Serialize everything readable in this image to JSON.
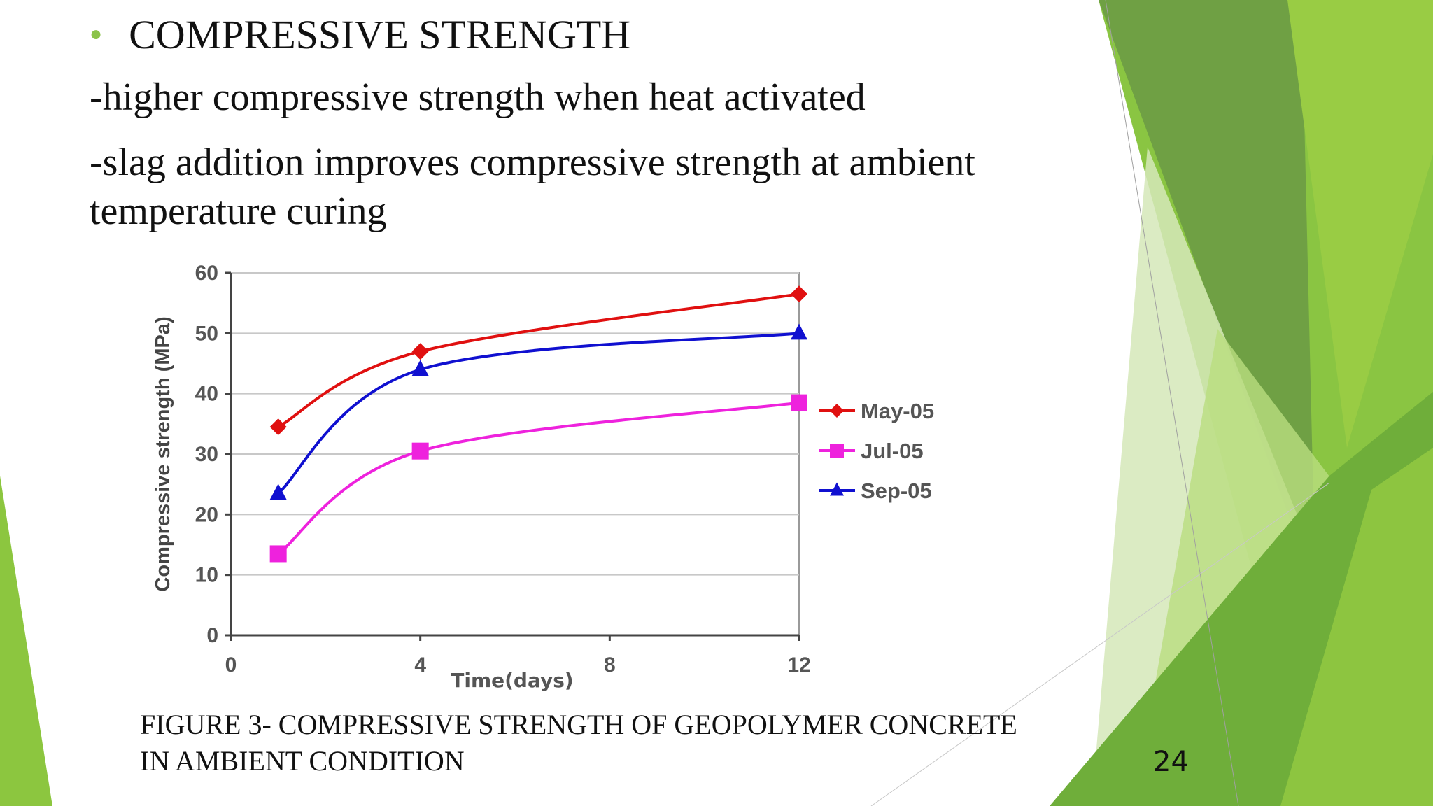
{
  "slide": {
    "heading": "COMPRESSIVE STRENGTH",
    "points": [
      "-higher compressive strength when heat activated",
      "-slag addition improves compressive strength at ambient",
      "temperature curing"
    ],
    "caption_line1": "FIGURE 3- COMPRESSIVE STRENGTH OF GEOPOLYMER CONCRETE",
    "caption_line2": "IN AMBIENT CONDITION",
    "page_number": "24"
  },
  "chart_data": {
    "type": "line",
    "xlabel": "Time(days)",
    "ylabel": "Compressive strength (MPa)",
    "xlim": [
      0,
      12
    ],
    "ylim": [
      0,
      60
    ],
    "xticks": [
      0,
      4,
      8,
      12
    ],
    "yticks": [
      0,
      10,
      20,
      30,
      40,
      50,
      60
    ],
    "grid": true,
    "legend_position": "right",
    "series": [
      {
        "name": "May-05",
        "color": "#e01010",
        "marker": "diamond",
        "x": [
          1,
          4,
          12
        ],
        "y": [
          34.5,
          47,
          56.5
        ]
      },
      {
        "name": "Jul-05",
        "color": "#ee22dd",
        "marker": "square",
        "x": [
          1,
          4,
          12
        ],
        "y": [
          13.5,
          30.5,
          38.5
        ]
      },
      {
        "name": "Sep-05",
        "color": "#1010d0",
        "marker": "triangle",
        "x": [
          1,
          4,
          12
        ],
        "y": [
          23.5,
          44,
          50
        ]
      }
    ]
  }
}
